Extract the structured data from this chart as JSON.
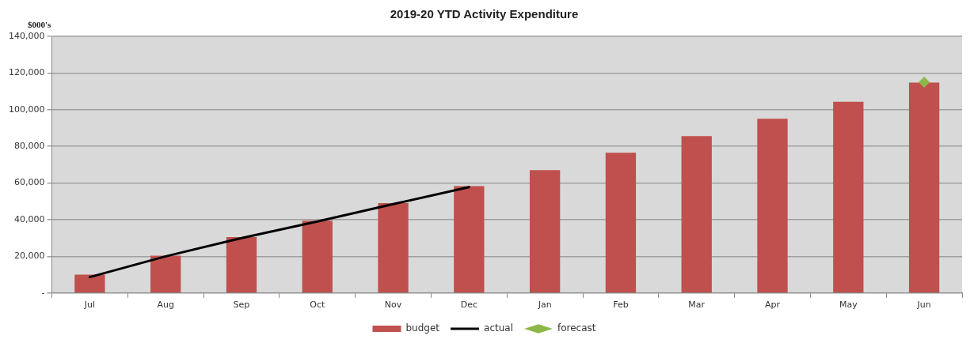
{
  "chart_data": {
    "type": "bar",
    "title": "2019-20 YTD Activity Expenditure",
    "ylabel": "$000's",
    "categories": [
      "Jul",
      "Aug",
      "Sep",
      "Oct",
      "Nov",
      "Dec",
      "Jan",
      "Feb",
      "Mar",
      "Apr",
      "May",
      "Jun"
    ],
    "series": [
      {
        "name": "budget",
        "color": "#c0504d",
        "values": [
          10000,
          20400,
          30500,
          39500,
          49100,
          58300,
          67000,
          76500,
          85600,
          95100,
          104300,
          114800
        ]
      },
      {
        "name": "actual",
        "type": "line",
        "color": "#000000",
        "marker": "none",
        "values": [
          8700,
          20000,
          30000,
          39000,
          48500,
          57800,
          null,
          null,
          null,
          null,
          null,
          null
        ]
      },
      {
        "name": "forecast",
        "type": "scatter",
        "color": "#8db849",
        "marker": "diamond",
        "values": [
          null,
          null,
          null,
          null,
          null,
          null,
          null,
          null,
          null,
          null,
          null,
          115000
        ]
      }
    ],
    "ylim": [
      0,
      140000
    ],
    "yticks": [
      {
        "value": 0,
        "label": "-"
      },
      {
        "value": 20000,
        "label": "20,000"
      },
      {
        "value": 40000,
        "label": "40,000"
      },
      {
        "value": 60000,
        "label": "60,000"
      },
      {
        "value": 80000,
        "label": "80,000"
      },
      {
        "value": 100000,
        "label": "100,000"
      },
      {
        "value": 120000,
        "label": "120,000"
      },
      {
        "value": 140000,
        "label": "140,000"
      }
    ],
    "grid": "y",
    "legend": "bottom"
  }
}
